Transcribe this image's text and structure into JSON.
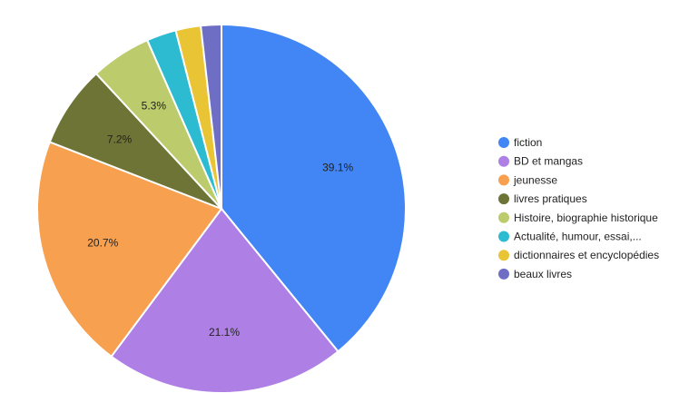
{
  "chart_data": {
    "type": "pie",
    "title": "",
    "legend_position": "right",
    "slices": [
      {
        "name": "fiction",
        "value": 39.1,
        "label": "39.1%",
        "color": "#4285F4"
      },
      {
        "name": "BD et mangas",
        "value": 21.1,
        "label": "21.1%",
        "color": "#AE80E6"
      },
      {
        "name": "jeunesse",
        "value": 20.7,
        "label": "20.7%",
        "color": "#F6A050"
      },
      {
        "name": "livres pratiques",
        "value": 7.2,
        "label": "7.2%",
        "color": "#6E7435"
      },
      {
        "name": "Histoire, biographie historique",
        "value": 5.3,
        "label": "5.3%",
        "color": "#BCCB6C"
      },
      {
        "name": "Actualité, humour, essai,...",
        "value": 2.6,
        "label": "",
        "color": "#2CBBD1"
      },
      {
        "name": "dictionnaires et encyclopédies",
        "value": 2.2,
        "label": "",
        "color": "#E9C434"
      },
      {
        "name": "beaux livres",
        "value": 1.8,
        "label": "",
        "color": "#6E6FC4"
      }
    ]
  }
}
